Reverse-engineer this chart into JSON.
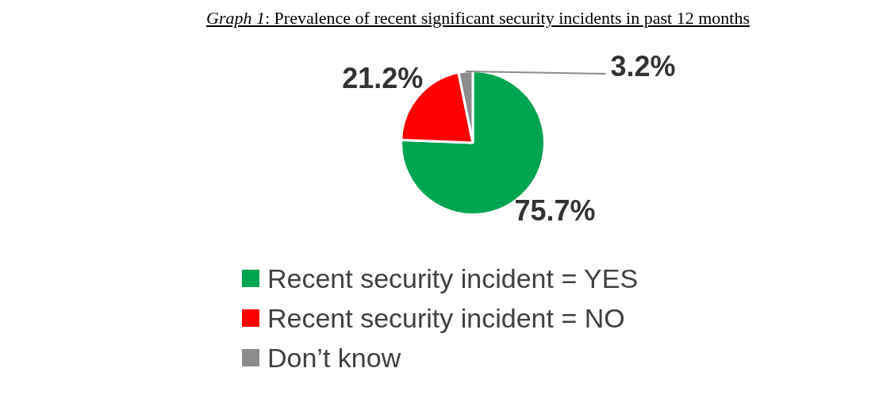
{
  "chart_data": {
    "type": "pie",
    "title": "Graph 1: Prevalence of recent significant security incidents in past 12 months",
    "categories": [
      "Recent security incident = YES",
      "Recent security incident = NO",
      "Don’t know"
    ],
    "values": [
      75.7,
      21.2,
      3.2
    ],
    "colors": [
      "#00a550",
      "#ff0000",
      "#8c8c8c"
    ],
    "value_labels": [
      "75.7%",
      "21.2%",
      "3.2%"
    ],
    "legend": "bottom"
  }
}
